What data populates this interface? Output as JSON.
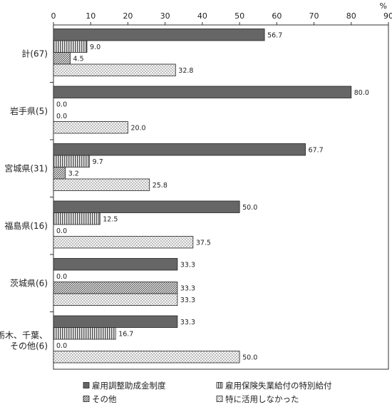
{
  "chart_data": {
    "type": "bar",
    "orientation": "horizontal",
    "unit_label": "%",
    "xlim": [
      0,
      90
    ],
    "x_ticks": [
      0,
      10,
      20,
      30,
      40,
      50,
      60,
      70,
      80,
      90
    ],
    "legend_position": "bottom",
    "categories": [
      [
        "計(67)"
      ],
      [
        "岩手県(5)"
      ],
      [
        "宮城県(31)"
      ],
      [
        "福島県(16)"
      ],
      [
        "茨城県(6)"
      ],
      [
        "栃木、千葉、",
        "その他(6)"
      ]
    ],
    "series": [
      {
        "name": "雇用調整助成金制度",
        "pattern": "solid",
        "color": "#666666",
        "values": [
          56.7,
          80.0,
          67.7,
          50.0,
          33.3,
          33.3
        ],
        "labels": [
          "56.7",
          "80.0",
          "67.7",
          "50.0",
          "33.3",
          "33.3"
        ]
      },
      {
        "name": "雇用保険失業給付の特別給付",
        "pattern": "vlines",
        "values": [
          9.0,
          0.0,
          9.7,
          12.5,
          0.0,
          16.7
        ],
        "labels": [
          "9.0",
          "0.0",
          "9.7",
          "12.5",
          "0.0",
          "16.7"
        ]
      },
      {
        "name": "その他",
        "pattern": "diag",
        "values": [
          4.5,
          0.0,
          3.2,
          0.0,
          33.3,
          0.0
        ],
        "labels": [
          "4.5",
          "0.0",
          "3.2",
          "0.0",
          "33.3",
          "0.0"
        ]
      },
      {
        "name": "特に活用しなかった",
        "pattern": "dots",
        "values": [
          32.8,
          20.0,
          25.8,
          37.5,
          33.3,
          50.0
        ],
        "labels": [
          "32.8",
          "20.0",
          "25.8",
          "37.5",
          "33.3",
          "50.0"
        ]
      }
    ]
  }
}
